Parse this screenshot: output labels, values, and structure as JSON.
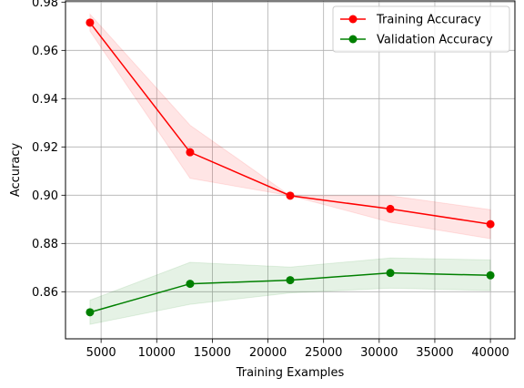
{
  "chart_data": {
    "type": "line",
    "title": "",
    "xlabel": "Training Examples",
    "ylabel": "Accuracy",
    "xlim": [
      1800,
      42200
    ],
    "ylim": [
      0.8405,
      0.9805
    ],
    "xticks": [
      5000,
      10000,
      15000,
      20000,
      25000,
      30000,
      35000,
      40000
    ],
    "xtick_labels": [
      "5000",
      "10000",
      "15000",
      "20000",
      "25000",
      "30000",
      "35000",
      "40000"
    ],
    "yticks": [
      0.86,
      0.88,
      0.9,
      0.92,
      0.94,
      0.96,
      0.98
    ],
    "ytick_labels": [
      "0.86",
      "0.88",
      "0.90",
      "0.92",
      "0.94",
      "0.96",
      "0.98"
    ],
    "grid": true,
    "legend_position": "top-right",
    "x": [
      4000,
      13000,
      22000,
      31000,
      40000
    ],
    "series": [
      {
        "name": "Training Accuracy",
        "color": "#ff0000",
        "fill_color": "#ff0000",
        "values": [
          0.9715,
          0.9178,
          0.8998,
          0.8943,
          0.888
        ],
        "band_lower": [
          0.968,
          0.907,
          0.8998,
          0.8888,
          0.882
        ],
        "band_upper": [
          0.975,
          0.929,
          0.8998,
          0.8998,
          0.894
        ]
      },
      {
        "name": "Validation Accuracy",
        "color": "#008000",
        "fill_color": "#008000",
        "values": [
          0.8515,
          0.8633,
          0.8648,
          0.8678,
          0.8668
        ],
        "band_lower": [
          0.8465,
          0.8548,
          0.8595,
          0.8615,
          0.8605
        ],
        "band_upper": [
          0.8565,
          0.8722,
          0.8702,
          0.874,
          0.8732
        ]
      }
    ]
  }
}
